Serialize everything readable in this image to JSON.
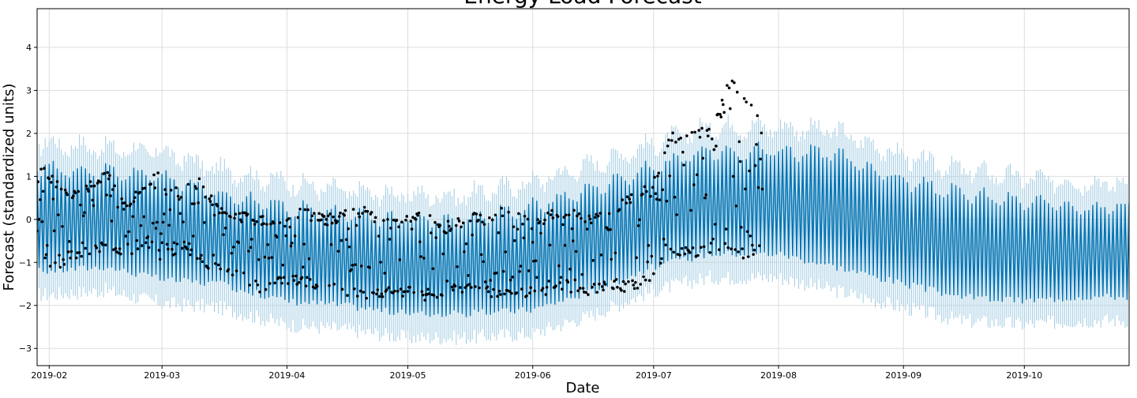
{
  "chart_data": {
    "type": "line",
    "title": "Energy Load Forecast",
    "xlabel": "Date",
    "ylabel": "Forecast (standardized units)",
    "x_range": [
      "2019-01-29",
      "2019-10-27"
    ],
    "ylim": [
      -3.4,
      4.9
    ],
    "grid": true,
    "x_ticks": [
      "2019-02",
      "2019-03",
      "2019-04",
      "2019-05",
      "2019-06",
      "2019-07",
      "2019-08",
      "2019-09",
      "2019-10"
    ],
    "y_ticks": [
      -3,
      -2,
      -1,
      0,
      1,
      2,
      3,
      4
    ],
    "observed_end": "2019-07-28",
    "colors": {
      "forecast": "#0072B2",
      "interval": "#a6cee3",
      "observed": "#000000",
      "grid": "#dddddd"
    },
    "series": [
      {
        "role": "forecast",
        "envelope": [
          {
            "x": "2019-02-01",
            "low": -1.2,
            "high": 1.2
          },
          {
            "x": "2019-02-15",
            "low": -1.1,
            "high": 1.1
          },
          {
            "x": "2019-03-01",
            "low": -1.4,
            "high": 1.0
          },
          {
            "x": "2019-03-15",
            "low": -1.5,
            "high": 0.6
          },
          {
            "x": "2019-04-01",
            "low": -1.9,
            "high": 0.3
          },
          {
            "x": "2019-04-15",
            "low": -2.0,
            "high": 0.1
          },
          {
            "x": "2019-05-01",
            "low": -2.2,
            "high": 0.0
          },
          {
            "x": "2019-05-15",
            "low": -2.2,
            "high": 0.0
          },
          {
            "x": "2019-06-01",
            "low": -2.1,
            "high": 0.3
          },
          {
            "x": "2019-06-15",
            "low": -1.7,
            "high": 0.7
          },
          {
            "x": "2019-07-01",
            "low": -1.1,
            "high": 1.2
          },
          {
            "x": "2019-07-15",
            "low": -0.8,
            "high": 1.6
          },
          {
            "x": "2019-08-01",
            "low": -0.8,
            "high": 1.6
          },
          {
            "x": "2019-08-15",
            "low": -1.1,
            "high": 1.5
          },
          {
            "x": "2019-09-01",
            "low": -1.5,
            "high": 0.9
          },
          {
            "x": "2019-09-15",
            "low": -1.8,
            "high": 0.6
          },
          {
            "x": "2019-10-01",
            "low": -1.9,
            "high": 0.4
          },
          {
            "x": "2019-10-15",
            "low": -1.8,
            "high": 0.3
          },
          {
            "x": "2019-10-27",
            "low": -1.8,
            "high": 0.3
          }
        ],
        "interval_width": 0.55
      },
      {
        "role": "observed",
        "x": [
          "2019-01-29",
          "2019-02-01",
          "2019-02-05",
          "2019-02-10",
          "2019-02-15",
          "2019-02-20",
          "2019-02-25",
          "2019-03-01",
          "2019-03-05",
          "2019-03-10",
          "2019-03-15",
          "2019-03-20",
          "2019-03-25",
          "2019-04-01",
          "2019-04-05",
          "2019-04-10",
          "2019-04-15",
          "2019-04-20",
          "2019-04-25",
          "2019-05-01",
          "2019-05-05",
          "2019-05-10",
          "2019-05-15",
          "2019-05-20",
          "2019-05-25",
          "2019-06-01",
          "2019-06-05",
          "2019-06-10",
          "2019-06-15",
          "2019-06-20",
          "2019-06-25",
          "2019-07-01",
          "2019-07-05",
          "2019-07-10",
          "2019-07-15",
          "2019-07-20",
          "2019-07-25",
          "2019-07-28"
        ],
        "high": [
          1.7,
          1.1,
          0.7,
          0.8,
          1.2,
          0.4,
          0.9,
          1.2,
          0.7,
          1.0,
          0.4,
          0.2,
          0.1,
          0.0,
          0.3,
          0.1,
          0.2,
          0.3,
          0.0,
          0.1,
          0.2,
          -0.1,
          0.2,
          0.1,
          0.3,
          0.0,
          0.2,
          0.3,
          0.1,
          0.3,
          0.6,
          1.0,
          2.0,
          2.1,
          2.2,
          3.3,
          2.8,
          2.2
        ],
        "low": [
          -0.6,
          -1.2,
          -1.1,
          -0.9,
          -0.7,
          -0.9,
          -0.6,
          -1.0,
          -0.8,
          -1.0,
          -1.3,
          -1.4,
          -1.7,
          -1.5,
          -1.6,
          -1.7,
          -1.8,
          -1.9,
          -1.8,
          -1.8,
          -1.9,
          -1.8,
          -1.7,
          -1.8,
          -1.9,
          -1.8,
          -1.8,
          -1.7,
          -1.8,
          -1.6,
          -1.7,
          -1.4,
          -0.8,
          -0.9,
          -0.8,
          -0.8,
          -1.0,
          -0.5
        ]
      }
    ]
  }
}
